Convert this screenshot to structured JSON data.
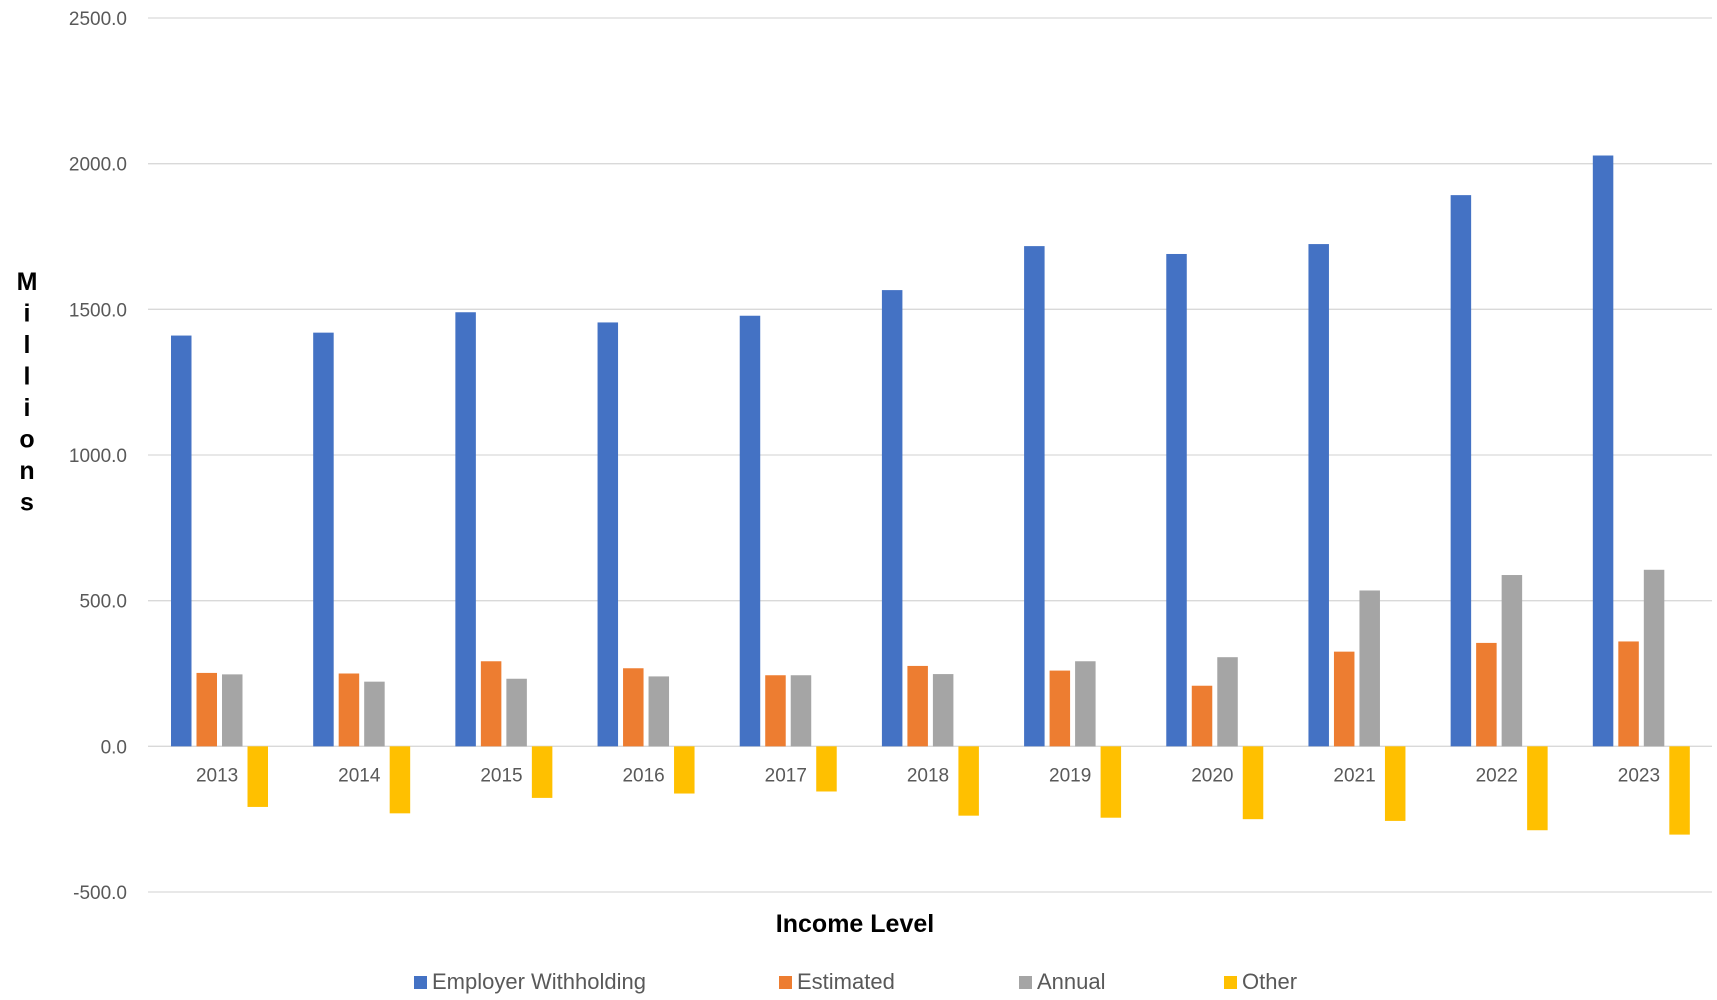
{
  "chart_data": {
    "type": "bar",
    "title": "",
    "xlabel": "Income Level",
    "ylabel": "Millions",
    "ylim": [
      -500,
      2500
    ],
    "yticks": [
      2500,
      2000,
      1500,
      1000,
      500,
      0,
      -500
    ],
    "ytick_labels": [
      "2500.0",
      "2000.0",
      "1500.0",
      "1000.0",
      "500.0",
      "0.0",
      "-500.0"
    ],
    "grid": true,
    "legend_position": "bottom",
    "categories": [
      "2013",
      "2014",
      "2015",
      "2016",
      "2017",
      "2018",
      "2019",
      "2020",
      "2021",
      "2022",
      "2023"
    ],
    "series": [
      {
        "name": "Employer Withholding",
        "color": "#4472C4",
        "values": [
          1410,
          1420,
          1490,
          1455,
          1478,
          1566,
          1717,
          1690,
          1724,
          1892,
          2028
        ]
      },
      {
        "name": "Estimated",
        "color": "#ED7D31",
        "values": [
          252,
          250,
          292,
          268,
          244,
          276,
          260,
          208,
          325,
          355,
          360
        ]
      },
      {
        "name": "Annual",
        "color": "#A5A5A5",
        "values": [
          247,
          222,
          232,
          240,
          244,
          248,
          292,
          306,
          535,
          588,
          606
        ]
      },
      {
        "name": "Other",
        "color": "#FFC000",
        "values": [
          -208,
          -230,
          -177,
          -162,
          -155,
          -238,
          -245,
          -250,
          -256,
          -288,
          -303
        ]
      }
    ]
  }
}
